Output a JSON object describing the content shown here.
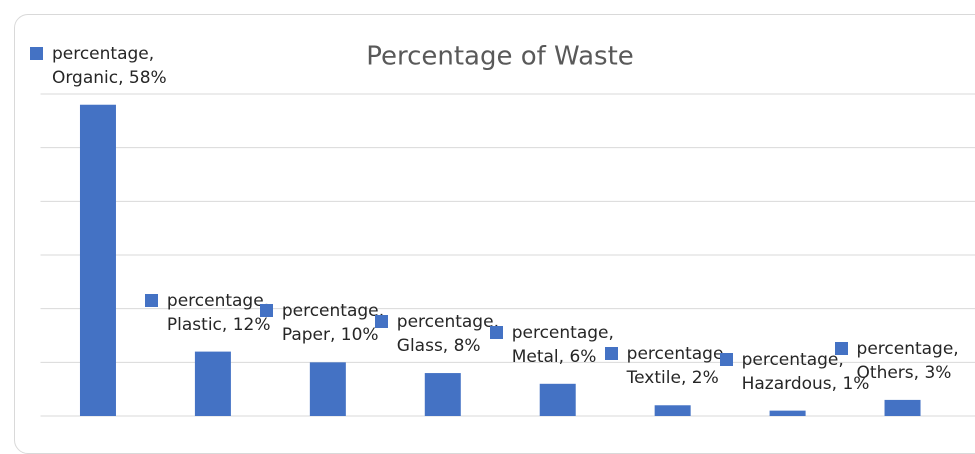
{
  "chart_data": {
    "type": "bar",
    "title": "Percentage of Waste",
    "values": [
      58,
      12,
      10,
      8,
      6,
      2,
      1,
      3
    ],
    "value_labels": [
      "percentage, Organic, 58%",
      "percentage, Plastic, 12%",
      "percentage, Paper, 10%",
      "percentage, Glass, 8%",
      "percentage, Metal, 6%",
      "percentage, Textile, 2%",
      "percentage, Hazardous, 1%",
      "percentage, Others, 3%"
    ],
    "color": "#4472c4",
    "ylim": [
      0,
      60
    ],
    "yticks": [
      0,
      10,
      20,
      30,
      40,
      50,
      60
    ],
    "grid": true
  }
}
